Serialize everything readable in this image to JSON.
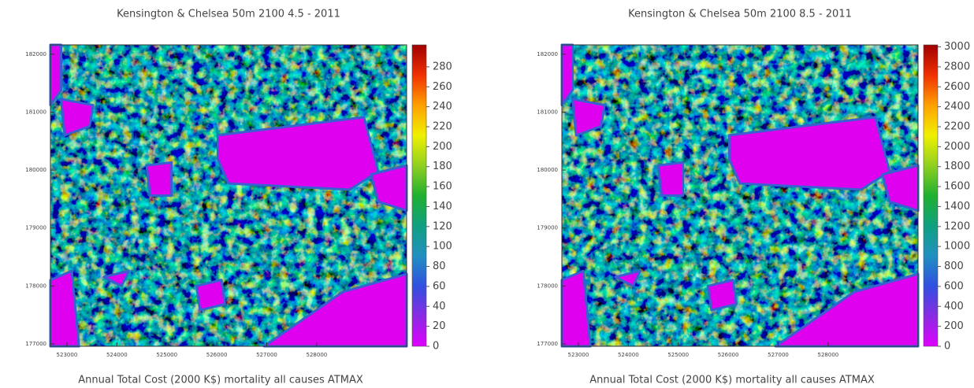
{
  "maps": [
    {
      "title": "Kensington & Chelsea 50m 2100 4.5 - 2011",
      "xlabel": "Annual Total Cost (2000 K$) mortality all causes ATMAX",
      "xlim": [
        522670,
        529800
      ],
      "xticks": [
        523000,
        524000,
        525000,
        526000,
        527000,
        528000
      ],
      "ylim": [
        176960,
        182160
      ],
      "yticks": [
        177000,
        178000,
        179000,
        180000,
        181000,
        182000
      ],
      "colorbar": {
        "lim": [
          0,
          302
        ],
        "ticks": [
          0,
          20,
          40,
          60,
          80,
          100,
          120,
          140,
          160,
          180,
          200,
          220,
          240,
          260,
          280
        ]
      }
    },
    {
      "title": "Kensington & Chelsea 50m 2100 8.5 - 2011",
      "xlabel": "Annual Total Cost (2000 K$) mortality all causes ATMAX",
      "xlim": [
        522670,
        529800
      ],
      "xticks": [
        523000,
        524000,
        525000,
        526000,
        527000,
        528000
      ],
      "ylim": [
        176960,
        182160
      ],
      "yticks": [
        177000,
        178000,
        179000,
        180000,
        181000,
        182000
      ],
      "colorbar": {
        "lim": [
          0,
          3020
        ],
        "ticks": [
          0,
          200,
          400,
          600,
          800,
          1000,
          1200,
          1400,
          1600,
          1800,
          2000,
          2200,
          2400,
          2600,
          2800,
          3000
        ]
      }
    }
  ]
}
